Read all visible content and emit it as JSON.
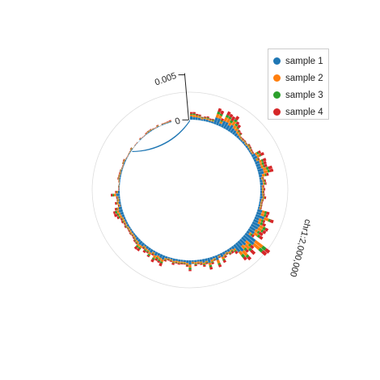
{
  "chart_data": {
    "type": "bar",
    "layout": "circular-stacked",
    "chromosome_label": "chr1:2,000,000",
    "y_ticks": [
      "0",
      "0.005"
    ],
    "y_tick_values": [
      0,
      0.005
    ],
    "colors": {
      "sample 1": "#1f77b4",
      "sample 2": "#ff7f0e",
      "sample 3": "#2ca02c",
      "sample 4": "#d62728"
    },
    "legend_placement": "top-right",
    "series": [
      {
        "name": "sample 1"
      },
      {
        "name": "sample 2"
      },
      {
        "name": "sample 3"
      },
      {
        "name": "sample 4"
      }
    ],
    "bin_count": 160
  },
  "legend": {
    "items": [
      {
        "label": "sample 1",
        "color": "#1f77b4"
      },
      {
        "label": "sample 2",
        "color": "#ff7f0e"
      },
      {
        "label": "sample 3",
        "color": "#2ca02c"
      },
      {
        "label": "sample 4",
        "color": "#d62728"
      }
    ]
  }
}
